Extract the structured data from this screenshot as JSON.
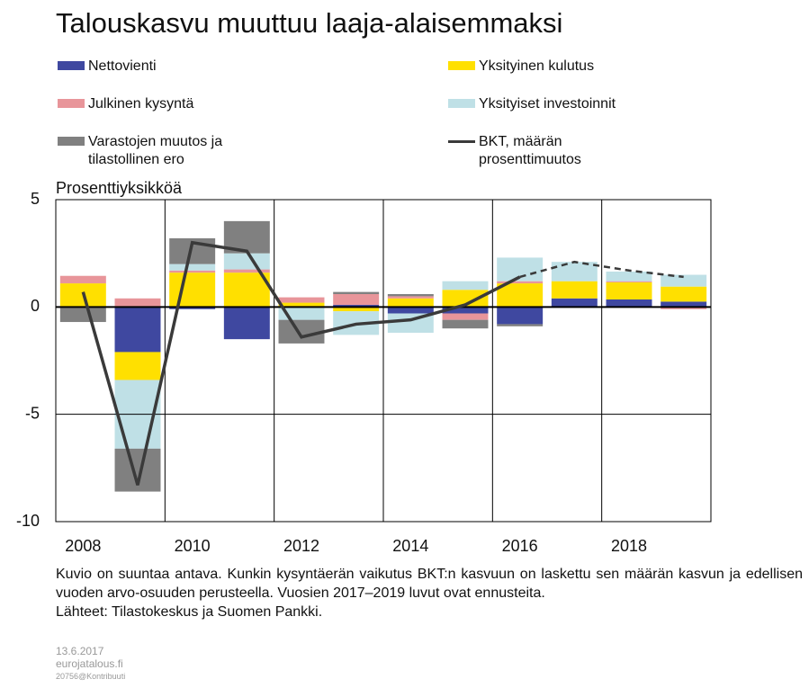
{
  "chart_data": {
    "type": "stacked_bar_line",
    "title": "Talouskasvu muuttuu laaja-alaisemmaksi",
    "y_axis_label": "Prosenttiyksikköä",
    "categories": [
      "2008",
      null,
      "2010",
      null,
      "2012",
      null,
      "2014",
      null,
      "2016",
      null,
      "2018",
      null
    ],
    "ylim": [
      -10,
      5
    ],
    "yticks": [
      5,
      0,
      -5,
      -10
    ],
    "grid": true,
    "series": [
      {
        "name": "Nettovienti",
        "color": "#3f48a0",
        "values": [
          0,
          -2.1,
          -0.1,
          -1.5,
          0,
          0.1,
          -0.3,
          -0.3,
          -0.8,
          0.4,
          0.35,
          0.25
        ]
      },
      {
        "name": "Yksityinen kulutus",
        "color": "#ffe000",
        "values": [
          1.1,
          -1.3,
          1.6,
          1.6,
          0.2,
          -0.2,
          0.4,
          0.8,
          1.1,
          0.8,
          0.8,
          0.7
        ]
      },
      {
        "name": "Julkinen kysyntä",
        "color": "#e8959a",
        "values": [
          0.35,
          0.4,
          0.1,
          0.15,
          0.25,
          0.5,
          0.1,
          -0.3,
          0.1,
          0,
          0.05,
          -0.1
        ]
      },
      {
        "name": "Yksityiset investoinnit",
        "color": "#bfe0e6",
        "values": [
          0,
          -3.2,
          0.3,
          0.75,
          -0.6,
          -1.1,
          -0.9,
          0.4,
          1.1,
          0.9,
          0.45,
          0.55
        ]
      },
      {
        "name": "Varastojen muutos ja tilastollinen ero",
        "color": "#808080",
        "values": [
          -0.7,
          -2.0,
          1.2,
          1.5,
          -1.1,
          0.1,
          0.1,
          -0.4,
          -0.1,
          0,
          0,
          0
        ]
      },
      {
        "name": "BKT, määrän prosenttimuutos",
        "color": "#3a3a3a",
        "type": "line",
        "dashed_from": 8,
        "values": [
          0.7,
          -8.3,
          3.0,
          2.6,
          -1.4,
          -0.8,
          -0.6,
          0.1,
          1.4,
          2.1,
          1.7,
          1.4
        ]
      }
    ],
    "note": "Kuvio on suuntaa antava. Kunkin kysyntäerän vaikutus BKT:n kasvuun on laskettu sen määrän kasvun ja edellisen vuoden arvo-osuuden perusteella. Vuosien 2017–2019 luvut ovat ennusteita.",
    "source": "Lähteet: Tilastokeskus ja Suomen Pankki.",
    "footer": [
      "13.6.2017",
      "eurojatalous.fi",
      "20756@Kontribuuti"
    ]
  }
}
